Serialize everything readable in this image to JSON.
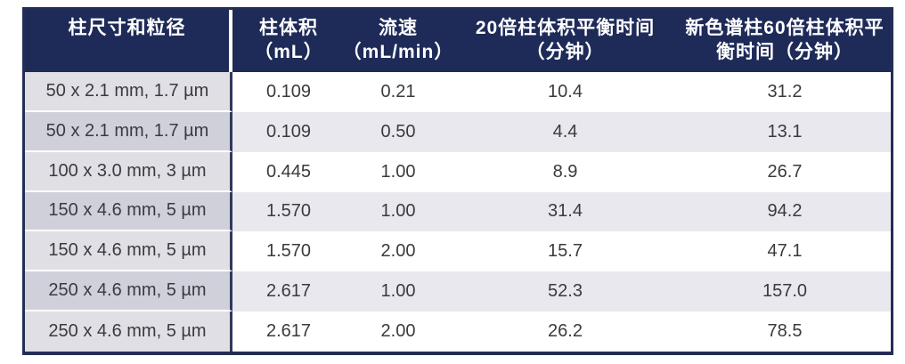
{
  "chart_data": {
    "type": "table",
    "columns": [
      {
        "label": "柱尺寸和粒径",
        "line1": "柱尺寸和粒径",
        "line2": ""
      },
      {
        "label": "柱体积（mL）",
        "line1": "柱体积",
        "line2": "（mL）"
      },
      {
        "label": "流速（mL/min）",
        "line1": "流速",
        "line2": "（mL/min）"
      },
      {
        "label": "20倍柱体积平衡时间（分钟）",
        "line1": "20倍柱体积平衡时间",
        "line2": "（分钟）"
      },
      {
        "label": "新色谱柱60倍柱体积平衡时间（分钟）",
        "line1": "新色谱柱60倍柱体积平",
        "line2": "衡时间（分钟）"
      }
    ],
    "rows": [
      [
        "50 x 2.1 mm, 1.7 µm",
        "0.109",
        "0.21",
        "10.4",
        "31.2"
      ],
      [
        "50 x 2.1 mm, 1.7 µm",
        "0.109",
        "0.50",
        "4.4",
        "13.1"
      ],
      [
        "100 x 3.0 mm, 3 µm",
        "0.445",
        "1.00",
        "8.9",
        "26.7"
      ],
      [
        "150 x 4.6 mm, 5 µm",
        "1.570",
        "1.00",
        "31.4",
        "94.2"
      ],
      [
        "150 x 4.6 mm, 5 µm",
        "1.570",
        "2.00",
        "15.7",
        "47.1"
      ],
      [
        "250 x 4.6 mm, 5 µm",
        "2.617",
        "1.00",
        "52.3",
        "157.0"
      ],
      [
        "250 x 4.6 mm, 5 µm",
        "2.617",
        "2.00",
        "26.2",
        "78.5"
      ]
    ],
    "layout": {
      "legend": "none",
      "grid": "row-striping"
    }
  },
  "colors": {
    "header_bg": "#1e2b58",
    "header_text": "#ffffff",
    "table_border": "#232e55",
    "col1_divider": "#30395c",
    "row_white": "#ffffff",
    "row_alt": "#e8e8ee",
    "col1_light": "#dfdfe5",
    "col1_dark": "#d0d0db",
    "body_text": "#3a3a3f"
  }
}
